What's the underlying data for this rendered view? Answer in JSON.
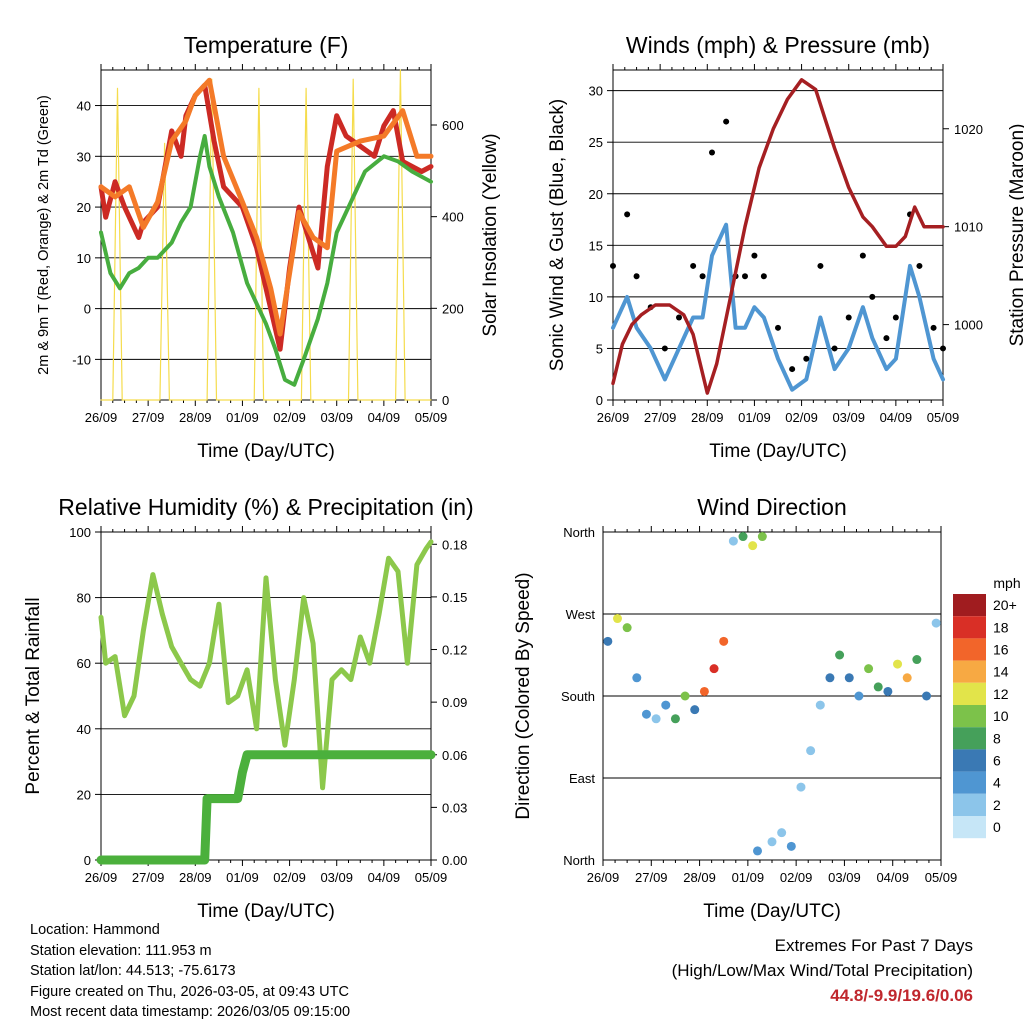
{
  "colors": {
    "temp2m": "#cc2a24",
    "temp9m": "#f47a28",
    "dewpoint": "#47ad3f",
    "solar": "#f5dc4c",
    "gust": "#000000",
    "wind": "#4f96d2",
    "pressure": "#a51f22",
    "humidity": "#8cc84b",
    "precip": "#4bb03c",
    "extremes": "#c0272d"
  },
  "info": {
    "location": "Location: Hammond",
    "elevation": "Station elevation: 111.953 m",
    "latlon": "Station lat/lon: 44.513; -75.6173",
    "created": "Figure created on Thu, 2026-03-05, at 09:43 UTC",
    "recent": "Most recent data timestamp: 2026/03/05 09:15:00"
  },
  "extremes": {
    "line1": "Extremes For Past 7 Days",
    "line2": "(High/Low/Max Wind/Total Precipitation)",
    "values": "44.8/-9.9/19.6/0.06"
  },
  "chart_data": [
    {
      "type": "line",
      "title": "Temperature (F)",
      "xlabel": "Time (Day/UTC)",
      "ylabel": "2m & 9m T (Red, Orange) & 2m Td (Green)",
      "y2label": "Solar Insolation (Yellow)",
      "x_ticks": [
        "26/09",
        "27/09",
        "28/09",
        "01/09",
        "02/09",
        "03/09",
        "04/09",
        "05/09"
      ],
      "xlim": [
        0,
        7
      ],
      "ylim": [
        -18,
        47
      ],
      "y_ticks": [
        -10,
        0,
        10,
        20,
        30,
        40
      ],
      "y2lim": [
        0,
        720
      ],
      "y2_ticks": [
        0,
        200,
        400,
        600
      ],
      "grid": true,
      "series": [
        {
          "name": "2m T",
          "color_key": "temp2m",
          "x": [
            0,
            0.1,
            0.3,
            0.5,
            0.8,
            0.9,
            1.2,
            1.5,
            1.7,
            1.8,
            2.0,
            2.2,
            2.4,
            2.6,
            2.8,
            3.0,
            3.3,
            3.6,
            3.8,
            4.0,
            4.2,
            4.4,
            4.6,
            4.8,
            5.0,
            5.2,
            5.5,
            5.8,
            6.0,
            6.2,
            6.4,
            6.6,
            6.8,
            7.0
          ],
          "y": [
            24,
            18,
            25,
            20,
            14,
            17,
            20,
            35,
            30,
            38,
            42,
            44,
            33,
            24,
            22,
            20,
            12,
            0,
            -8,
            8,
            20,
            14,
            8,
            28,
            38,
            34,
            32,
            30,
            36,
            39,
            29,
            28,
            27,
            28
          ]
        },
        {
          "name": "9m T",
          "color_key": "temp9m",
          "x": [
            0,
            0.3,
            0.6,
            0.9,
            1.2,
            1.5,
            1.8,
            2.0,
            2.3,
            2.6,
            3.0,
            3.3,
            3.6,
            3.8,
            4.0,
            4.2,
            4.5,
            4.8,
            5.0,
            5.5,
            6.0,
            6.4,
            6.7,
            7.0
          ],
          "y": [
            24,
            22,
            24,
            16,
            21,
            33,
            37,
            42,
            45,
            30,
            21,
            14,
            4,
            -5,
            7,
            19,
            14,
            12,
            31,
            33,
            34,
            39,
            30,
            30
          ]
        },
        {
          "name": "2m Td",
          "color_key": "dewpoint",
          "x": [
            0,
            0.2,
            0.4,
            0.6,
            0.8,
            1.0,
            1.2,
            1.5,
            1.7,
            1.9,
            2.1,
            2.2,
            2.3,
            2.5,
            2.8,
            3.1,
            3.5,
            3.7,
            3.9,
            4.1,
            4.3,
            4.6,
            4.8,
            5.0,
            5.3,
            5.6,
            6.0,
            6.3,
            6.6,
            7.0
          ],
          "y": [
            15,
            7,
            4,
            7,
            8,
            10,
            10,
            13,
            17,
            20,
            30,
            34,
            28,
            22,
            15,
            5,
            -3,
            -8,
            -14,
            -15,
            -10,
            -2,
            5,
            15,
            21,
            27,
            30,
            29,
            27,
            25
          ]
        },
        {
          "name": "Solar Insolation",
          "color_key": "solar",
          "axis": "y2",
          "x": [
            0,
            0.25,
            0.35,
            0.45,
            0.55,
            0.9,
            1.25,
            1.35,
            1.45,
            1.6,
            1.9,
            2.25,
            2.35,
            2.45,
            2.6,
            2.9,
            3.25,
            3.35,
            3.45,
            3.6,
            3.9,
            4.25,
            4.35,
            4.45,
            4.6,
            4.9,
            5.25,
            5.35,
            5.45,
            5.6,
            5.9,
            6.25,
            6.35,
            6.45,
            6.6,
            7.0
          ],
          "y": [
            0,
            0,
            680,
            0,
            0,
            0,
            0,
            560,
            0,
            0,
            0,
            0,
            700,
            0,
            0,
            0,
            0,
            680,
            0,
            0,
            0,
            0,
            680,
            0,
            0,
            0,
            0,
            700,
            0,
            0,
            0,
            0,
            720,
            0,
            0,
            0
          ]
        }
      ]
    },
    {
      "type": "scatter",
      "title": "Winds (mph) & Pressure (mb)",
      "xlabel": "Time (Day/UTC)",
      "ylabel": "Sonic Wind & Gust (Blue, Black)",
      "y2label": "Station Pressure (Maroon)",
      "x_ticks": [
        "26/09",
        "27/09",
        "28/09",
        "01/09",
        "02/09",
        "03/09",
        "04/09",
        "05/09"
      ],
      "xlim": [
        0,
        7
      ],
      "ylim": [
        0,
        32
      ],
      "y_ticks": [
        0,
        5,
        10,
        15,
        20,
        25,
        30
      ],
      "y2lim": [
        992.3,
        1026
      ],
      "y2_ticks": [
        1000,
        1010,
        1020
      ],
      "grid": true,
      "series": [
        {
          "name": "Gust",
          "color_key": "gust",
          "x": [
            0,
            0.3,
            0.5,
            0.8,
            1.1,
            1.4,
            1.7,
            1.9,
            2.1,
            2.4,
            2.6,
            2.8,
            3.0,
            3.2,
            3.5,
            3.8,
            4.1,
            4.4,
            4.7,
            5.0,
            5.3,
            5.5,
            5.8,
            6.0,
            6.3,
            6.5,
            6.8,
            7.0
          ],
          "y": [
            13,
            18,
            12,
            9,
            5,
            8,
            13,
            12,
            24,
            27,
            12,
            12,
            14,
            12,
            7,
            3,
            4,
            13,
            5,
            8,
            14,
            10,
            6,
            8,
            18,
            13,
            7,
            5
          ]
        },
        {
          "name": "Wind",
          "color_key": "wind",
          "x": [
            0,
            0.3,
            0.5,
            0.8,
            1.1,
            1.4,
            1.7,
            1.9,
            2.1,
            2.4,
            2.6,
            2.8,
            3.0,
            3.2,
            3.5,
            3.8,
            4.1,
            4.4,
            4.7,
            5.0,
            5.3,
            5.5,
            5.8,
            6.0,
            6.3,
            6.5,
            6.8,
            7.0
          ],
          "y": [
            7,
            10,
            7,
            5,
            2,
            5,
            8,
            8,
            14,
            17,
            7,
            7,
            9,
            8,
            4,
            1,
            2,
            8,
            3,
            5,
            9,
            6,
            3,
            4,
            13,
            10,
            4,
            2
          ]
        },
        {
          "name": "Pressure",
          "color_key": "pressure",
          "axis": "y2",
          "x": [
            0,
            0.2,
            0.4,
            0.6,
            0.9,
            1.2,
            1.5,
            1.7,
            1.9,
            2.0,
            2.2,
            2.5,
            2.8,
            3.1,
            3.4,
            3.7,
            4.0,
            4.3,
            4.5,
            4.7,
            5.0,
            5.3,
            5.5,
            5.8,
            6.0,
            6.2,
            6.4,
            6.6,
            6.8,
            7.0
          ],
          "y": [
            994,
            998,
            1000,
            1001,
            1002,
            1002,
            1001,
            999,
            995,
            993,
            996,
            1003,
            1010,
            1016,
            1020,
            1023,
            1025,
            1024,
            1021,
            1018,
            1014,
            1011,
            1010,
            1008,
            1008,
            1009,
            1012,
            1010,
            1010,
            1010
          ]
        }
      ]
    },
    {
      "type": "line",
      "title": "Relative Humidity (%) & Precipitation (in)",
      "xlabel": "Time (Day/UTC)",
      "ylabel": "Percent & Total Rainfall",
      "x_ticks": [
        "26/09",
        "27/09",
        "28/09",
        "01/09",
        "02/09",
        "03/09",
        "04/09",
        "05/09"
      ],
      "xlim": [
        0,
        7
      ],
      "ylim": [
        0,
        100
      ],
      "y_ticks": [
        0,
        20,
        40,
        60,
        80,
        100
      ],
      "y2lim": [
        0,
        0.187
      ],
      "y2_ticks": [
        "0.00",
        "0.03",
        "0.06",
        "0.09",
        "0.12",
        "0.15",
        "0.18"
      ],
      "grid": true,
      "series": [
        {
          "name": "Relative Humidity",
          "color_key": "humidity",
          "x": [
            0,
            0.1,
            0.3,
            0.5,
            0.7,
            0.9,
            1.1,
            1.3,
            1.5,
            1.7,
            1.9,
            2.1,
            2.3,
            2.5,
            2.7,
            2.9,
            3.1,
            3.3,
            3.5,
            3.7,
            3.9,
            4.1,
            4.3,
            4.5,
            4.7,
            4.9,
            5.1,
            5.3,
            5.5,
            5.7,
            5.9,
            6.1,
            6.3,
            6.5,
            6.7,
            6.9,
            7.0
          ],
          "y": [
            74,
            60,
            62,
            44,
            50,
            70,
            87,
            75,
            65,
            60,
            55,
            53,
            60,
            78,
            48,
            50,
            58,
            40,
            86,
            55,
            35,
            55,
            80,
            66,
            22,
            55,
            58,
            55,
            68,
            60,
            75,
            92,
            88,
            60,
            90,
            95,
            97
          ]
        },
        {
          "name": "Total Precipitation",
          "color_key": "precip",
          "axis": "y2",
          "x": [
            0,
            1.0,
            2.0,
            2.2,
            2.25,
            2.9,
            3.0,
            3.1,
            7.0
          ],
          "y": [
            0,
            0,
            0,
            0,
            0.035,
            0.035,
            0.05,
            0.06,
            0.06
          ]
        }
      ]
    },
    {
      "type": "scatter",
      "title": "Wind Direction",
      "xlabel": "Time (Day/UTC)",
      "ylabel": "Direction (Colored By Speed)",
      "x_ticks": [
        "26/09",
        "27/09",
        "28/09",
        "01/09",
        "02/09",
        "03/09",
        "04/09",
        "05/09"
      ],
      "xlim": [
        0,
        7
      ],
      "ylim": [
        0,
        360
      ],
      "y_tick_labels": [
        "North",
        "East",
        "South",
        "West",
        "North"
      ],
      "colorbar_title": "mph",
      "colorbar_labels": [
        "0",
        "2",
        "4",
        "6",
        "8",
        "10",
        "12",
        "14",
        "16",
        "18",
        "20+"
      ],
      "colorbar_colors": [
        "#c6e6f7",
        "#8cc5ea",
        "#4f96d2",
        "#3a79b4",
        "#45a05a",
        "#7cc24a",
        "#e2e44a",
        "#f7a943",
        "#f2652a",
        "#d92f26",
        "#a01c1f"
      ],
      "series": [
        {
          "name": "Direction",
          "x": [
            0.1,
            0.3,
            0.5,
            0.7,
            0.9,
            1.1,
            1.3,
            1.5,
            1.7,
            1.9,
            2.1,
            2.3,
            2.5,
            2.7,
            2.9,
            3.1,
            3.2,
            3.3,
            3.5,
            3.7,
            3.9,
            4.1,
            4.3,
            4.5,
            4.7,
            4.9,
            5.1,
            5.3,
            5.5,
            5.7,
            5.9,
            6.1,
            6.3,
            6.5,
            6.7,
            6.9
          ],
          "y": [
            240,
            265,
            255,
            200,
            160,
            155,
            170,
            155,
            180,
            165,
            185,
            210,
            240,
            350,
            355,
            345,
            10,
            355,
            20,
            30,
            15,
            80,
            120,
            170,
            200,
            225,
            200,
            180,
            210,
            190,
            185,
            215,
            200,
            220,
            180,
            260
          ],
          "speed": [
            6,
            12,
            10,
            5,
            4,
            3,
            5,
            8,
            10,
            6,
            16,
            18,
            16,
            3,
            8,
            12,
            4,
            10,
            3,
            2,
            4,
            2,
            3,
            2,
            6,
            8,
            6,
            4,
            10,
            8,
            6,
            12,
            14,
            8,
            6,
            3
          ]
        }
      ]
    }
  ]
}
